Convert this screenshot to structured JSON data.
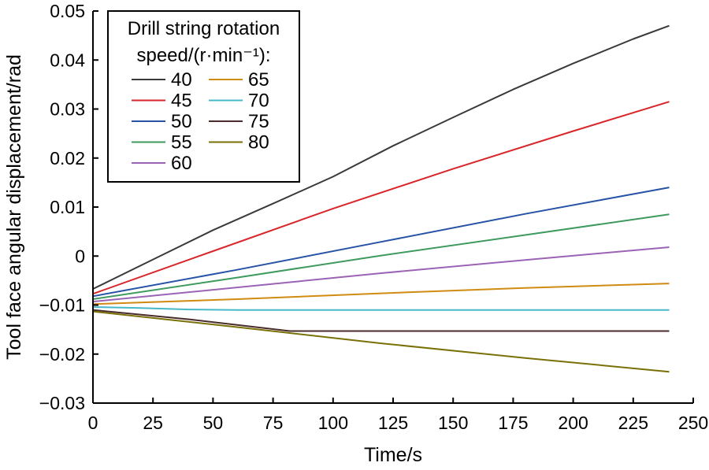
{
  "chart_data": {
    "type": "line",
    "xlabel": "Time/s",
    "ylabel": "Tool face angular displacement/rad",
    "xlim": [
      0,
      250
    ],
    "ylim": [
      -0.03,
      0.05
    ],
    "xticks": [
      0,
      25,
      50,
      75,
      100,
      125,
      150,
      175,
      200,
      225,
      250
    ],
    "yticks": [
      -0.03,
      -0.02,
      -0.01,
      0,
      0.01,
      0.02,
      0.03,
      0.04,
      0.05
    ],
    "xtick_labels": [
      "0",
      "25",
      "50",
      "75",
      "100",
      "125",
      "150",
      "175",
      "200",
      "225",
      "250"
    ],
    "ytick_labels": [
      "−0.03",
      "−0.02",
      "−0.01",
      "0",
      "0.01",
      "0.02",
      "0.03",
      "0.04",
      "0.05"
    ],
    "grid": false,
    "legend": {
      "title_line1": "Drill string rotation",
      "title_line2": "speed/(r·min⁻¹):",
      "placement": "top-left",
      "columns": 2
    },
    "series": [
      {
        "name": "40",
        "color": "#3a3a3a",
        "x": [
          0,
          25,
          50,
          75,
          100,
          125,
          150,
          175,
          200,
          225,
          240
        ],
        "y": [
          -0.0067,
          -0.0007,
          0.0053,
          0.0107,
          0.0162,
          0.0225,
          0.0283,
          0.034,
          0.0393,
          0.0443,
          0.047
        ]
      },
      {
        "name": "45",
        "color": "#d9262b",
        "x": [
          0,
          50,
          100,
          150,
          200,
          240
        ],
        "y": [
          -0.0077,
          0.001,
          0.0097,
          0.0178,
          0.0255,
          0.0315
        ]
      },
      {
        "name": "50",
        "color": "#2653a6",
        "x": [
          0,
          60,
          120,
          180,
          240
        ],
        "y": [
          -0.0082,
          -0.0028,
          0.0029,
          0.0086,
          0.014
        ]
      },
      {
        "name": "55",
        "color": "#3f9a5f",
        "x": [
          0,
          60,
          120,
          180,
          240
        ],
        "y": [
          -0.0088,
          -0.0044,
          0.0001,
          0.0043,
          0.0085
        ]
      },
      {
        "name": "60",
        "color": "#9b63b5",
        "x": [
          0,
          60,
          120,
          180,
          240
        ],
        "y": [
          -0.0093,
          -0.0064,
          -0.0035,
          -0.0008,
          0.0018
        ]
      },
      {
        "name": "65",
        "color": "#d08b12",
        "x": [
          0,
          60,
          120,
          180,
          240
        ],
        "y": [
          -0.0098,
          -0.0088,
          -0.0076,
          -0.0065,
          -0.0056
        ]
      },
      {
        "name": "70",
        "color": "#46b8c8",
        "x": [
          0,
          20,
          40,
          60,
          240
        ],
        "y": [
          -0.0104,
          -0.0106,
          -0.0109,
          -0.011,
          -0.011
        ]
      },
      {
        "name": "75",
        "color": "#4a2b2b",
        "x": [
          0,
          40,
          82,
          240
        ],
        "y": [
          -0.011,
          -0.0129,
          -0.0153,
          -0.0153
        ]
      },
      {
        "name": "80",
        "color": "#7a7008",
        "x": [
          0,
          60,
          120,
          180,
          240
        ],
        "y": [
          -0.0113,
          -0.0145,
          -0.0178,
          -0.0208,
          -0.0236
        ]
      }
    ]
  }
}
